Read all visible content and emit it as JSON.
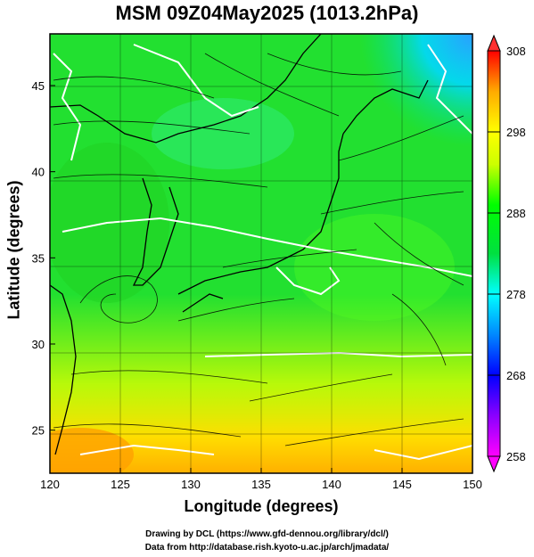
{
  "title": "MSM 09Z04May2025 (1013.2hPa)",
  "xlabel": "Longitude (degrees)",
  "ylabel": "Latitude  (degrees)",
  "credit_line1": "Drawing by DCL (https://www.gfd-dennou.org/library/dcl/)",
  "credit_line2": "Data from http://database.rish.kyoto-u.ac.jp/arch/jmadata/",
  "chart_data": {
    "type": "heatmap",
    "title": "MSM 09Z04May2025 (1013.2hPa)",
    "xlabel": "Longitude (degrees)",
    "ylabel": "Latitude  (degrees)",
    "xlim": [
      120,
      150
    ],
    "ylim": [
      22.5,
      48
    ],
    "x_ticks": [
      120,
      125,
      130,
      135,
      140,
      145,
      150
    ],
    "y_ticks": [
      25,
      30,
      35,
      40,
      45
    ],
    "colorbar": {
      "min": 258,
      "max": 308,
      "ticks": [
        258,
        268,
        278,
        288,
        298,
        308
      ],
      "colors": [
        "#ff00ff",
        "#8a00ff",
        "#0000ff",
        "#0088ff",
        "#00ffff",
        "#00ff00",
        "#ccff00",
        "#ffff00",
        "#ffaa00",
        "#ff0000"
      ]
    },
    "grid": true,
    "overlay": "streamlines and white contour lines over temperature field (K)"
  }
}
